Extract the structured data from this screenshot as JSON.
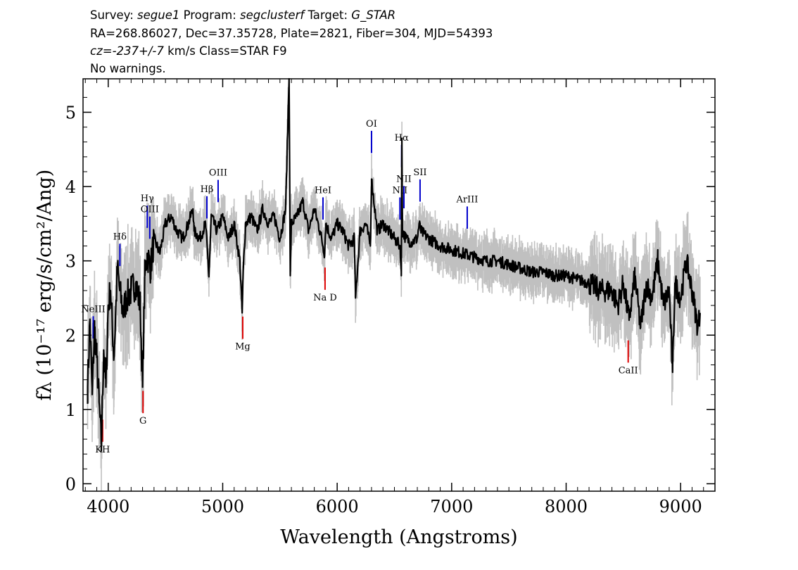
{
  "header": {
    "survey_label": "Survey:",
    "survey_value": "segue1",
    "program_label": "Program:",
    "program_value": "segclusterf",
    "target_label": "Target:",
    "target_value": "G_STAR",
    "line2": "RA=268.86027, Dec=37.35728, Plate=2821, Fiber=304, MJD=54393",
    "cz_label": "cz=",
    "cz_value": "-237+/-7",
    "cz_rest": " km/s Class=STAR F9",
    "warnings": "No warnings."
  },
  "colors": {
    "flux": "#000000",
    "error_band": "#c0c0c0",
    "emission_marker": "#0000cc",
    "absorption_marker": "#dd0000"
  },
  "chart_data": {
    "type": "line",
    "xlabel": "Wavelength (Angstroms)",
    "ylabel": "fλ (10⁻¹⁷ erg/s/cm²/Ang)",
    "xlim": [
      3780,
      9300
    ],
    "ylim": [
      -0.1,
      5.45
    ],
    "x_ticks": [
      4000,
      5000,
      6000,
      7000,
      8000,
      9000
    ],
    "y_ticks": [
      0,
      1,
      2,
      3,
      4,
      5
    ],
    "grid": false,
    "series": [
      {
        "role": "flux",
        "x": [
          3820,
          3840,
          3860,
          3880,
          3900,
          3920,
          3940,
          3960,
          3980,
          4000,
          4020,
          4050,
          4080,
          4100,
          4130,
          4160,
          4200,
          4240,
          4280,
          4300,
          4320,
          4340,
          4370,
          4400,
          4450,
          4500,
          4550,
          4600,
          4650,
          4700,
          4740,
          4750,
          4800,
          4850,
          4880,
          4900,
          4950,
          5000,
          5050,
          5100,
          5150,
          5170,
          5180,
          5200,
          5250,
          5300,
          5350,
          5400,
          5450,
          5500,
          5550,
          5580,
          5590,
          5600,
          5650,
          5700,
          5750,
          5800,
          5850,
          5890,
          5900,
          5950,
          6000,
          6050,
          6100,
          6150,
          6160,
          6200,
          6250,
          6290,
          6300,
          6350,
          6400,
          6450,
          6500,
          6550,
          6560,
          6565,
          6570,
          6600,
          6650,
          6700,
          6716,
          6731,
          6800,
          6900,
          7000,
          7100,
          7200,
          7300,
          7400,
          7500,
          7600,
          7700,
          7800,
          7900,
          8000,
          8100,
          8200,
          8300,
          8400,
          8450,
          8500,
          8550,
          8600,
          8650,
          8700,
          8750,
          8800,
          8850,
          8900,
          8930,
          8950,
          9000,
          9050,
          9100,
          9150,
          9170
        ],
        "y": [
          1.3,
          2.2,
          1.2,
          2.1,
          1.7,
          1.1,
          0.5,
          1.8,
          1.3,
          2.4,
          2.6,
          1.7,
          2.9,
          2.6,
          2.3,
          2.5,
          2.6,
          2.7,
          2.4,
          1.3,
          2.8,
          3.1,
          2.9,
          3.3,
          3.1,
          3.5,
          3.6,
          3.4,
          3.3,
          3.5,
          3.7,
          3.4,
          3.3,
          3.5,
          2.8,
          3.6,
          3.4,
          3.6,
          3.3,
          3.5,
          3.0,
          2.3,
          2.9,
          3.5,
          3.6,
          3.4,
          3.7,
          3.5,
          3.6,
          3.3,
          3.7,
          5.5,
          2.8,
          3.5,
          3.6,
          3.8,
          3.4,
          3.7,
          3.4,
          3.1,
          3.5,
          3.3,
          3.5,
          3.4,
          3.2,
          3.3,
          2.5,
          3.4,
          3.5,
          3.2,
          4.1,
          3.4,
          3.5,
          3.4,
          3.3,
          3.2,
          2.8,
          4.65,
          3.4,
          3.3,
          3.25,
          3.3,
          3.5,
          3.4,
          3.3,
          3.2,
          3.15,
          3.1,
          3.05,
          3.0,
          3.0,
          2.95,
          2.9,
          2.85,
          2.85,
          2.8,
          2.8,
          2.75,
          2.7,
          2.6,
          2.6,
          2.4,
          2.7,
          2.2,
          2.8,
          2.1,
          2.7,
          2.5,
          3.0,
          2.4,
          2.6,
          1.5,
          2.7,
          2.5,
          3.0,
          2.6,
          2.1,
          2.3
        ]
      }
    ],
    "line_markers": [
      {
        "label": "NeIII",
        "wavelength": 3869,
        "kind": "emission"
      },
      {
        "label": "Hδ",
        "wavelength": 4102,
        "kind": "emission"
      },
      {
        "label": "Hγ",
        "wavelength": 4341,
        "kind": "emission"
      },
      {
        "label": "OIII",
        "wavelength": 4363,
        "kind": "emission"
      },
      {
        "label": "Hβ",
        "wavelength": 4862,
        "kind": "emission"
      },
      {
        "label": "OIII",
        "wavelength": 4960,
        "kind": "emission"
      },
      {
        "label": "HeI",
        "wavelength": 5876,
        "kind": "emission"
      },
      {
        "label": "OI",
        "wavelength": 6300,
        "kind": "emission"
      },
      {
        "label": "NII",
        "wavelength": 6548,
        "kind": "emission"
      },
      {
        "label": "Hα",
        "wavelength": 6563,
        "kind": "emission"
      },
      {
        "label": "NII",
        "wavelength": 6583,
        "kind": "emission"
      },
      {
        "label": "SII",
        "wavelength": 6724,
        "kind": "emission"
      },
      {
        "label": "ArIII",
        "wavelength": 7136,
        "kind": "emission"
      },
      {
        "label": "KH",
        "wavelength": 3951,
        "kind": "absorption"
      },
      {
        "label": "G",
        "wavelength": 4304,
        "kind": "absorption"
      },
      {
        "label": "Mg",
        "wavelength": 5175,
        "kind": "absorption"
      },
      {
        "label": "Na D",
        "wavelength": 5894,
        "kind": "absorption"
      },
      {
        "label": "CaII",
        "wavelength": 8542,
        "kind": "absorption"
      }
    ]
  }
}
